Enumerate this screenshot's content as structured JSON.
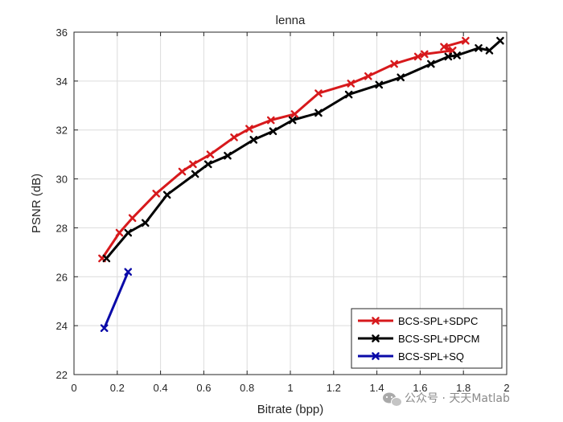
{
  "chart_data": {
    "type": "line",
    "title": "lenna",
    "xlabel": "Bitrate (bpp)",
    "ylabel": "PSNR (dB)",
    "xlim": [
      0,
      2
    ],
    "ylim": [
      22,
      36
    ],
    "xticks": [
      0,
      0.2,
      0.4,
      0.6,
      0.8,
      1,
      1.2,
      1.4,
      1.6,
      1.8,
      2
    ],
    "xtick_labels": [
      "0",
      "0.2",
      "0.4",
      "0.6",
      "0.8",
      "1",
      "1.2",
      "1.4",
      "1.6",
      "1.8",
      "2"
    ],
    "yticks": [
      22,
      24,
      26,
      28,
      30,
      32,
      34,
      36
    ],
    "ytick_labels": [
      "22",
      "24",
      "26",
      "28",
      "30",
      "32",
      "34",
      "36"
    ],
    "grid": true,
    "legend_position": "bottom-right",
    "series": [
      {
        "name": "BCS-SPL+SDPC",
        "color": "#d7191c",
        "marker": "x",
        "x": [
          0.13,
          0.21,
          0.27,
          0.38,
          0.5,
          0.55,
          0.63,
          0.74,
          0.81,
          0.91,
          1.02,
          1.13,
          1.28,
          1.36,
          1.48,
          1.59,
          1.62,
          1.75,
          1.71,
          1.81
        ],
        "y": [
          26.75,
          27.8,
          28.4,
          29.4,
          30.3,
          30.6,
          31.0,
          31.7,
          32.05,
          32.4,
          32.65,
          33.5,
          33.9,
          34.2,
          34.7,
          35.0,
          35.1,
          35.25,
          35.4,
          35.65
        ]
      },
      {
        "name": "BCS-SPL+DPCM",
        "color": "#000000",
        "marker": "x",
        "x": [
          0.15,
          0.25,
          0.33,
          0.43,
          0.56,
          0.62,
          0.71,
          0.83,
          0.92,
          1.01,
          1.13,
          1.27,
          1.41,
          1.51,
          1.65,
          1.73,
          1.77,
          1.87,
          1.92,
          1.97
        ],
        "y": [
          26.75,
          27.8,
          28.2,
          29.35,
          30.2,
          30.6,
          30.95,
          31.6,
          31.95,
          32.4,
          32.7,
          33.45,
          33.85,
          34.15,
          34.7,
          35.0,
          35.05,
          35.35,
          35.25,
          35.65
        ]
      },
      {
        "name": "BCS-SPL+SQ",
        "color": "#0a0aa8",
        "marker": "x",
        "x": [
          0.14,
          0.25
        ],
        "y": [
          23.9,
          26.2
        ]
      }
    ]
  },
  "watermark": {
    "text": "公众号 · 天天Matlab",
    "icon": "wechat-icon"
  }
}
